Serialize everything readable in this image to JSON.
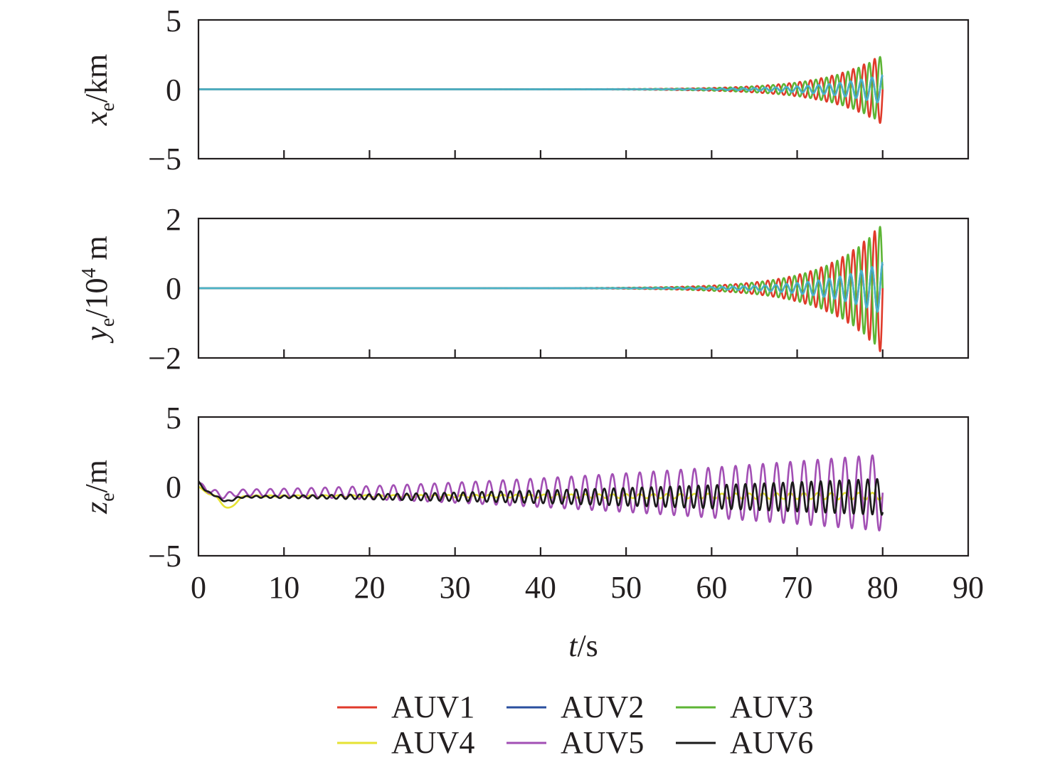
{
  "chart_data": [
    {
      "type": "line",
      "panel": "top",
      "ylabel_main": "x",
      "ylabel_sub": "e",
      "ylabel_unit": "/km",
      "ylim": [
        -5,
        5
      ],
      "yticks": [
        "5",
        "0",
        "−5"
      ],
      "xlim": [
        0,
        90
      ],
      "x_end": 80,
      "envelope": {
        "start": 30,
        "rate": 0.16
      },
      "series": [
        {
          "name": "AUV1",
          "color": "#e03a2b",
          "final_amplitude": 2.55,
          "period": 1.25,
          "phase": 0.0
        },
        {
          "name": "AUV3",
          "color": "#5db535",
          "final_amplitude": 2.45,
          "period": 1.25,
          "phase": 3.14159
        },
        {
          "name": "AUV2",
          "color": "#2a4f9f",
          "final_amplitude": 1.0,
          "period": 1.25,
          "phase": 1.57
        },
        {
          "color": "#4bb3c7",
          "final_amplitude": 1.05,
          "period": 1.25,
          "phase": 1.57
        }
      ]
    },
    {
      "type": "line",
      "panel": "middle",
      "ylabel_main": "y",
      "ylabel_sub": "e",
      "ylabel_unit": "/10",
      "ylabel_sup": "4",
      "ylabel_tail": " m",
      "ylim": [
        -2,
        2
      ],
      "yticks": [
        "2",
        "0",
        "−2"
      ],
      "xlim": [
        0,
        90
      ],
      "x_end": 80,
      "envelope": {
        "start": 30,
        "rate": 0.16
      },
      "series": [
        {
          "name": "AUV1",
          "color": "#e03a2b",
          "final_amplitude": 1.9,
          "period": 1.25,
          "phase": 0.0
        },
        {
          "name": "AUV3",
          "color": "#5db535",
          "final_amplitude": 1.85,
          "period": 1.25,
          "phase": 3.14159
        },
        {
          "name": "AUV2",
          "color": "#2a4f9f",
          "final_amplitude": 0.7,
          "period": 1.25,
          "phase": 1.57
        },
        {
          "color": "#4bb3c7",
          "final_amplitude": 0.75,
          "period": 1.25,
          "phase": 1.57
        }
      ]
    },
    {
      "type": "line",
      "panel": "bottom",
      "ylabel_main": "z",
      "ylabel_sub": "e",
      "ylabel_unit": "/m",
      "ylim": [
        -5,
        5
      ],
      "yticks": [
        "5",
        "0",
        "−5"
      ],
      "xlim": [
        0,
        90
      ],
      "xticks": [
        "0",
        "10",
        "20",
        "30",
        "40",
        "50",
        "60",
        "70",
        "80",
        "90"
      ],
      "xlabel_main": "t",
      "xlabel_unit": "/s",
      "x_end": 80,
      "series": [
        {
          "name": "AUV4",
          "color": "#e6e233",
          "offset": -0.7,
          "start": 0.0,
          "transient": {
            "dip": -1.6,
            "at": 3.5
          },
          "a0": 0.05,
          "a_end": 0.25,
          "period": 1.6,
          "phase": 0.0
        },
        {
          "name": "AUV5",
          "color": "#a24fb4",
          "offset": -0.45,
          "start": 0.2,
          "transient": {
            "dip": -0.7,
            "at": 3.0
          },
          "a0": 0.2,
          "a_end": 2.75,
          "period": 1.6,
          "phase": 0.0
        },
        {
          "name": "AUV6",
          "color": "#1a1a1a",
          "offset": -0.75,
          "start": 0.35,
          "transient": {
            "dip": -1.1,
            "at": 3.3
          },
          "a0": 0.05,
          "a_end": 1.3,
          "period": 1.1,
          "phase": 0.7
        }
      ]
    }
  ],
  "legend": [
    {
      "label": "AUV1",
      "color": "#e03a2b"
    },
    {
      "label": "AUV2",
      "color": "#2a4f9f"
    },
    {
      "label": "AUV3",
      "color": "#5db535"
    },
    {
      "label": "AUV4",
      "color": "#e6e233"
    },
    {
      "label": "AUV5",
      "color": "#a24fb4"
    },
    {
      "label": "AUV6",
      "color": "#1a1a1a"
    }
  ]
}
